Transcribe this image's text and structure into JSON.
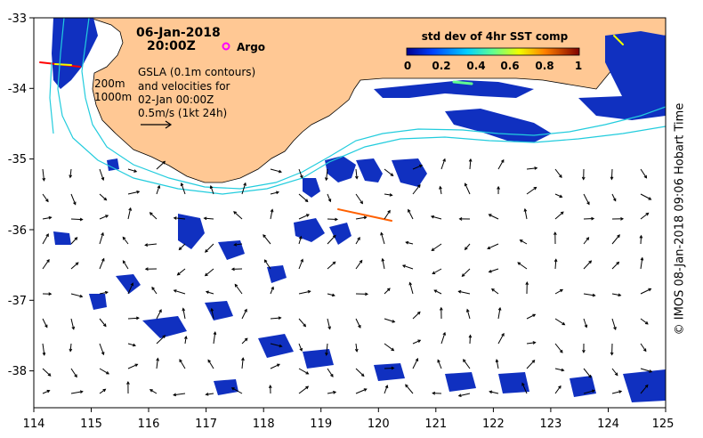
{
  "map": {
    "date": "06-Jan-2018",
    "time": "20:00Z",
    "argo_label": "Argo",
    "gsla_lines": [
      "GSLA (0.1m contours)",
      "and velocities for",
      "02-Jan 00:00Z",
      "0.5m/s (1kt 24h)"
    ],
    "isobath_200": "200m",
    "isobath_1000": "1000m",
    "colorbar": {
      "title": "std dev of 4hr SST comp",
      "ticks": [
        "0",
        "0.2",
        "0.4",
        "0.6",
        "0.8",
        "1"
      ]
    },
    "x_ticks": [
      "114",
      "115",
      "116",
      "117",
      "118",
      "119",
      "120",
      "121",
      "122",
      "123",
      "124",
      "125"
    ],
    "y_ticks": [
      "-33",
      "-34",
      "-35",
      "-36",
      "-37",
      "-38"
    ],
    "credit": "© IMOS 08-Jan-2018 09:06 Hobart Time",
    "colors": {
      "land": "#FFC894",
      "isobath": "#22CCDD",
      "sst_low": "#1030C0",
      "sst_high": "#FF0000",
      "argo": "#FF00FF"
    }
  }
}
